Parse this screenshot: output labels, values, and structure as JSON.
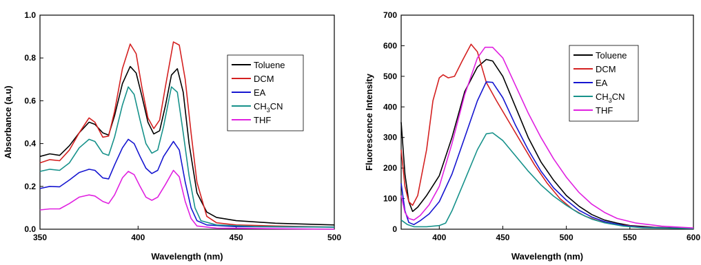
{
  "chart_data": [
    {
      "type": "line",
      "title": "",
      "xlabel": "Wavelength (nm)",
      "ylabel": "Absorbance (a.u)",
      "xlim": [
        350,
        500
      ],
      "ylim": [
        0,
        1.0
      ],
      "xticks": [
        "350",
        "400",
        "450",
        "500"
      ],
      "yticks": [
        "0.0",
        "0.2",
        "0.4",
        "0.6",
        "0.8",
        "1.0"
      ],
      "legend": "top-right",
      "grid": false,
      "series": [
        {
          "name": "Toluene",
          "color": "#000000",
          "points": [
            [
              350,
              0.34
            ],
            [
              355,
              0.352
            ],
            [
              360,
              0.345
            ],
            [
              365,
              0.39
            ],
            [
              370,
              0.45
            ],
            [
              375,
              0.5
            ],
            [
              378,
              0.49
            ],
            [
              382,
              0.45
            ],
            [
              385,
              0.44
            ],
            [
              388,
              0.53
            ],
            [
              392,
              0.68
            ],
            [
              396,
              0.76
            ],
            [
              399,
              0.73
            ],
            [
              402,
              0.62
            ],
            [
              405,
              0.5
            ],
            [
              408,
              0.445
            ],
            [
              411,
              0.46
            ],
            [
              414,
              0.58
            ],
            [
              417,
              0.72
            ],
            [
              420,
              0.75
            ],
            [
              423,
              0.64
            ],
            [
              426,
              0.4
            ],
            [
              430,
              0.17
            ],
            [
              435,
              0.08
            ],
            [
              440,
              0.055
            ],
            [
              450,
              0.04
            ],
            [
              470,
              0.028
            ],
            [
              500,
              0.02
            ]
          ]
        },
        {
          "name": "DCM",
          "color": "#d42020",
          "points": [
            [
              350,
              0.31
            ],
            [
              355,
              0.325
            ],
            [
              360,
              0.32
            ],
            [
              365,
              0.37
            ],
            [
              370,
              0.45
            ],
            [
              375,
              0.52
            ],
            [
              378,
              0.5
            ],
            [
              382,
              0.43
            ],
            [
              385,
              0.435
            ],
            [
              388,
              0.55
            ],
            [
              392,
              0.75
            ],
            [
              396,
              0.865
            ],
            [
              399,
              0.82
            ],
            [
              402,
              0.66
            ],
            [
              405,
              0.52
            ],
            [
              408,
              0.47
            ],
            [
              411,
              0.51
            ],
            [
              414,
              0.67
            ],
            [
              418,
              0.875
            ],
            [
              421,
              0.86
            ],
            [
              424,
              0.7
            ],
            [
              427,
              0.45
            ],
            [
              430,
              0.22
            ],
            [
              435,
              0.06
            ],
            [
              440,
              0.03
            ],
            [
              450,
              0.02
            ],
            [
              470,
              0.015
            ],
            [
              500,
              0.01
            ]
          ]
        },
        {
          "name": "EA",
          "color": "#1515d0",
          "points": [
            [
              350,
              0.19
            ],
            [
              355,
              0.2
            ],
            [
              360,
              0.198
            ],
            [
              365,
              0.23
            ],
            [
              370,
              0.265
            ],
            [
              375,
              0.28
            ],
            [
              378,
              0.275
            ],
            [
              382,
              0.24
            ],
            [
              385,
              0.235
            ],
            [
              388,
              0.3
            ],
            [
              392,
              0.38
            ],
            [
              395,
              0.42
            ],
            [
              398,
              0.4
            ],
            [
              401,
              0.34
            ],
            [
              404,
              0.285
            ],
            [
              407,
              0.26
            ],
            [
              410,
              0.275
            ],
            [
              413,
              0.34
            ],
            [
              418,
              0.41
            ],
            [
              421,
              0.37
            ],
            [
              424,
              0.22
            ],
            [
              427,
              0.1
            ],
            [
              430,
              0.04
            ],
            [
              435,
              0.02
            ],
            [
              450,
              0.012
            ],
            [
              500,
              0.01
            ]
          ]
        },
        {
          "name": "CH3CN",
          "color": "#16918a",
          "points": [
            [
              350,
              0.27
            ],
            [
              355,
              0.28
            ],
            [
              360,
              0.275
            ],
            [
              365,
              0.31
            ],
            [
              370,
              0.38
            ],
            [
              375,
              0.42
            ],
            [
              378,
              0.41
            ],
            [
              382,
              0.355
            ],
            [
              385,
              0.345
            ],
            [
              388,
              0.43
            ],
            [
              392,
              0.58
            ],
            [
              395,
              0.665
            ],
            [
              398,
              0.63
            ],
            [
              401,
              0.51
            ],
            [
              404,
              0.4
            ],
            [
              407,
              0.355
            ],
            [
              410,
              0.37
            ],
            [
              413,
              0.48
            ],
            [
              417,
              0.665
            ],
            [
              420,
              0.64
            ],
            [
              423,
              0.45
            ],
            [
              426,
              0.25
            ],
            [
              429,
              0.1
            ],
            [
              432,
              0.04
            ],
            [
              440,
              0.02
            ],
            [
              460,
              0.013
            ],
            [
              500,
              0.01
            ]
          ]
        },
        {
          "name": "THF",
          "color": "#e020e0",
          "points": [
            [
              350,
              0.09
            ],
            [
              355,
              0.095
            ],
            [
              360,
              0.095
            ],
            [
              365,
              0.12
            ],
            [
              370,
              0.15
            ],
            [
              375,
              0.16
            ],
            [
              378,
              0.155
            ],
            [
              382,
              0.13
            ],
            [
              385,
              0.12
            ],
            [
              388,
              0.16
            ],
            [
              392,
              0.24
            ],
            [
              395,
              0.27
            ],
            [
              398,
              0.255
            ],
            [
              401,
              0.2
            ],
            [
              404,
              0.15
            ],
            [
              407,
              0.135
            ],
            [
              410,
              0.15
            ],
            [
              414,
              0.21
            ],
            [
              418,
              0.275
            ],
            [
              421,
              0.245
            ],
            [
              424,
              0.13
            ],
            [
              427,
              0.05
            ],
            [
              430,
              0.015
            ],
            [
              440,
              0.005
            ],
            [
              500,
              0.0
            ]
          ]
        }
      ]
    },
    {
      "type": "line",
      "title": "",
      "xlabel": "Wavelength (nm)",
      "ylabel": "Fluorescence Intensity",
      "xlim": [
        370,
        600
      ],
      "ylim": [
        0,
        700
      ],
      "xticks": [
        "400",
        "450",
        "500",
        "550",
        "600"
      ],
      "yticks": [
        "0",
        "100",
        "200",
        "300",
        "400",
        "500",
        "600",
        "700"
      ],
      "legend": "top-right",
      "grid": false,
      "series": [
        {
          "name": "Toluene",
          "color": "#000000",
          "points": [
            [
              370,
              350
            ],
            [
              373,
              180
            ],
            [
              376,
              90
            ],
            [
              379,
              58
            ],
            [
              383,
              72
            ],
            [
              390,
              110
            ],
            [
              400,
              175
            ],
            [
              410,
              300
            ],
            [
              420,
              450
            ],
            [
              430,
              530
            ],
            [
              437,
              555
            ],
            [
              442,
              550
            ],
            [
              450,
              500
            ],
            [
              460,
              400
            ],
            [
              470,
              300
            ],
            [
              480,
              220
            ],
            [
              490,
              160
            ],
            [
              500,
              110
            ],
            [
              510,
              75
            ],
            [
              520,
              48
            ],
            [
              530,
              30
            ],
            [
              540,
              20
            ],
            [
              550,
              12
            ],
            [
              570,
              6
            ],
            [
              600,
              3
            ]
          ]
        },
        {
          "name": "DCM",
          "color": "#d42020",
          "points": [
            [
              370,
              260
            ],
            [
              373,
              140
            ],
            [
              376,
              90
            ],
            [
              379,
              78
            ],
            [
              383,
              110
            ],
            [
              390,
              260
            ],
            [
              395,
              420
            ],
            [
              400,
              495
            ],
            [
              403,
              505
            ],
            [
              407,
              495
            ],
            [
              412,
              500
            ],
            [
              418,
              550
            ],
            [
              425,
              605
            ],
            [
              430,
              580
            ],
            [
              437,
              480
            ],
            [
              445,
              420
            ],
            [
              455,
              350
            ],
            [
              465,
              280
            ],
            [
              475,
              210
            ],
            [
              485,
              150
            ],
            [
              495,
              100
            ],
            [
              505,
              65
            ],
            [
              515,
              42
            ],
            [
              525,
              28
            ],
            [
              540,
              15
            ],
            [
              560,
              7
            ],
            [
              600,
              2
            ]
          ]
        },
        {
          "name": "EA",
          "color": "#1515d0",
          "points": [
            [
              370,
              150
            ],
            [
              373,
              60
            ],
            [
              376,
              22
            ],
            [
              380,
              15
            ],
            [
              385,
              28
            ],
            [
              392,
              50
            ],
            [
              400,
              90
            ],
            [
              410,
              180
            ],
            [
              420,
              300
            ],
            [
              430,
              420
            ],
            [
              437,
              482
            ],
            [
              442,
              480
            ],
            [
              450,
              430
            ],
            [
              460,
              340
            ],
            [
              470,
              260
            ],
            [
              480,
              190
            ],
            [
              490,
              135
            ],
            [
              500,
              95
            ],
            [
              510,
              62
            ],
            [
              520,
              40
            ],
            [
              530,
              25
            ],
            [
              545,
              12
            ],
            [
              560,
              6
            ],
            [
              600,
              2
            ]
          ]
        },
        {
          "name": "CH3CN",
          "color": "#16918a",
          "points": [
            [
              370,
              30
            ],
            [
              375,
              15
            ],
            [
              380,
              8
            ],
            [
              390,
              8
            ],
            [
              400,
              12
            ],
            [
              405,
              20
            ],
            [
              410,
              60
            ],
            [
              420,
              160
            ],
            [
              430,
              260
            ],
            [
              437,
              312
            ],
            [
              442,
              315
            ],
            [
              450,
              290
            ],
            [
              460,
              240
            ],
            [
              470,
              190
            ],
            [
              480,
              145
            ],
            [
              490,
              108
            ],
            [
              500,
              78
            ],
            [
              510,
              52
            ],
            [
              520,
              33
            ],
            [
              530,
              21
            ],
            [
              545,
              10
            ],
            [
              560,
              5
            ],
            [
              600,
              2
            ]
          ]
        },
        {
          "name": "THF",
          "color": "#e020e0",
          "points": [
            [
              370,
              110
            ],
            [
              373,
              55
            ],
            [
              376,
              35
            ],
            [
              380,
              30
            ],
            [
              385,
              45
            ],
            [
              392,
              80
            ],
            [
              400,
              140
            ],
            [
              410,
              280
            ],
            [
              420,
              440
            ],
            [
              430,
              560
            ],
            [
              436,
              595
            ],
            [
              442,
              595
            ],
            [
              450,
              560
            ],
            [
              460,
              470
            ],
            [
              470,
              380
            ],
            [
              480,
              300
            ],
            [
              490,
              230
            ],
            [
              500,
              170
            ],
            [
              510,
              120
            ],
            [
              520,
              82
            ],
            [
              530,
              55
            ],
            [
              540,
              35
            ],
            [
              555,
              20
            ],
            [
              575,
              10
            ],
            [
              600,
              4
            ]
          ]
        }
      ]
    }
  ]
}
